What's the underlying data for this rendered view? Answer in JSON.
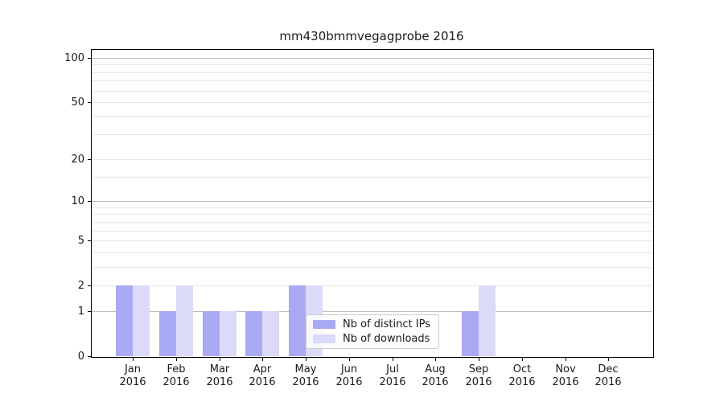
{
  "title": "mm430bmmvegagprobe 2016",
  "legend": {
    "items": [
      {
        "label": "Nb of distinct IPs"
      },
      {
        "label": "Nb of downloads"
      }
    ]
  },
  "chart_data": {
    "type": "bar",
    "title": "mm430bmmvegagprobe 2016",
    "categories": [
      "Jan 2016",
      "Feb 2016",
      "Mar 2016",
      "Apr 2016",
      "May 2016",
      "Jun 2016",
      "Jul 2016",
      "Aug 2016",
      "Sep 2016",
      "Oct 2016",
      "Nov 2016",
      "Dec 2016"
    ],
    "series": [
      {
        "name": "Nb of distinct IPs",
        "color": "#a9a9f4",
        "values": [
          2,
          1,
          1,
          1,
          2,
          0,
          0,
          0,
          1,
          0,
          0,
          0
        ]
      },
      {
        "name": "Nb of downloads",
        "color": "#dbdaf8",
        "values": [
          2,
          2,
          1,
          1,
          2,
          0,
          0,
          0,
          2,
          0,
          0,
          0
        ]
      }
    ],
    "xlabel": "",
    "ylabel": "",
    "yscale": "log1p",
    "ylim": [
      0,
      112
    ],
    "ytick_values": [
      0,
      1,
      2,
      5,
      10,
      20,
      50,
      100
    ],
    "ytick_labels": [
      "0",
      "1",
      "2",
      "5",
      "10",
      "20",
      "50",
      "100"
    ],
    "major_grid_values": [
      1,
      10,
      100
    ],
    "minor_grid_values": [
      2,
      3,
      4,
      5,
      6,
      7,
      8,
      9,
      15,
      20,
      30,
      40,
      50,
      60,
      70,
      80,
      90
    ],
    "grid": "horizontal",
    "legend_position": "lower-center",
    "background": "#ffffff"
  }
}
